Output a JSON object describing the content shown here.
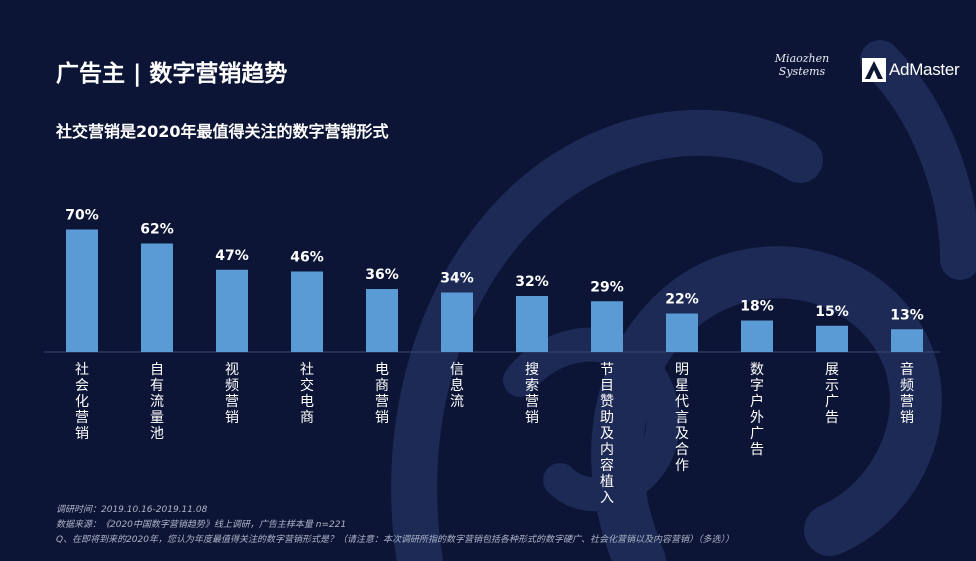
{
  "header": {
    "title": "广告主 | 数字营销趋势",
    "subtitle": "社交营销是2020年最值得关注的数字营销形式"
  },
  "logos": {
    "miaozhen_line1": "Miaozhen",
    "miaozhen_line2": "Systems",
    "admaster": "AdMaster"
  },
  "colors": {
    "background": "#0c1535",
    "bar": "#5b9bd5",
    "text": "#ffffff"
  },
  "chart_data": {
    "type": "bar",
    "categories": [
      "社会化营销",
      "自有流量池",
      "视频营销",
      "社交电商",
      "电商营销",
      "信息流",
      "搜索营销",
      "节目赞助及内容植入",
      "明星代言及合作",
      "数字户外广告",
      "展示广告",
      "音频营销"
    ],
    "values": [
      70,
      62,
      47,
      46,
      36,
      34,
      32,
      29,
      22,
      18,
      15,
      13
    ],
    "value_labels": [
      "70%",
      "62%",
      "47%",
      "46%",
      "36%",
      "34%",
      "32%",
      "29%",
      "22%",
      "18%",
      "15%",
      "13%"
    ],
    "unit": "%",
    "ylim": [
      0,
      100
    ],
    "grid": false,
    "legend": "none",
    "category_label_orientation": "vertical"
  },
  "footnotes": {
    "survey_time": "调研时间：2019.10.16-2019.11.08",
    "source": "数据来源：《2020中国数字营销趋势》线上调研，广告主样本量 n=221",
    "question": "Q、在即将到来的2020年，您认为年度最值得关注的数字营销形式是？（请注意：本次调研所指的数字营销包括各种形式的数字硬广、社会化营销以及内容营销）（多选））"
  }
}
